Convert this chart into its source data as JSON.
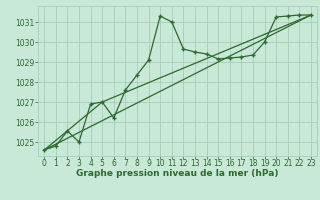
{
  "title": "Graphe pression niveau de la mer (hPa)",
  "background_color": "#c8e8d8",
  "grid_color": "#a8ccbb",
  "line_color": "#2d6a2d",
  "marker_color": "#2d6a2d",
  "xlim": [
    -0.5,
    23.5
  ],
  "ylim": [
    1024.3,
    1031.8
  ],
  "yticks": [
    1025,
    1026,
    1027,
    1028,
    1029,
    1030,
    1031
  ],
  "xticks": [
    0,
    1,
    2,
    3,
    4,
    5,
    6,
    7,
    8,
    9,
    10,
    11,
    12,
    13,
    14,
    15,
    16,
    17,
    18,
    19,
    20,
    21,
    22,
    23
  ],
  "series1_x": [
    0,
    1,
    2,
    3,
    4,
    5,
    6,
    7,
    8,
    9,
    10,
    11,
    12,
    13,
    14,
    15,
    16,
    17,
    18,
    19,
    20,
    21,
    22,
    23
  ],
  "series1_y": [
    1024.6,
    1024.8,
    1025.55,
    1025.0,
    1026.9,
    1027.0,
    1026.2,
    1027.6,
    1028.35,
    1029.1,
    1031.3,
    1031.0,
    1029.65,
    1029.5,
    1029.4,
    1029.15,
    1029.2,
    1029.25,
    1029.35,
    1030.0,
    1031.25,
    1031.3,
    1031.35,
    1031.35
  ],
  "series2_x": [
    0,
    23
  ],
  "series2_y": [
    1024.6,
    1031.35
  ],
  "series3_x": [
    0,
    5,
    23
  ],
  "series3_y": [
    1024.6,
    1027.0,
    1031.35
  ],
  "xlabel_fontsize": 6.5,
  "tick_fontsize": 5.5
}
